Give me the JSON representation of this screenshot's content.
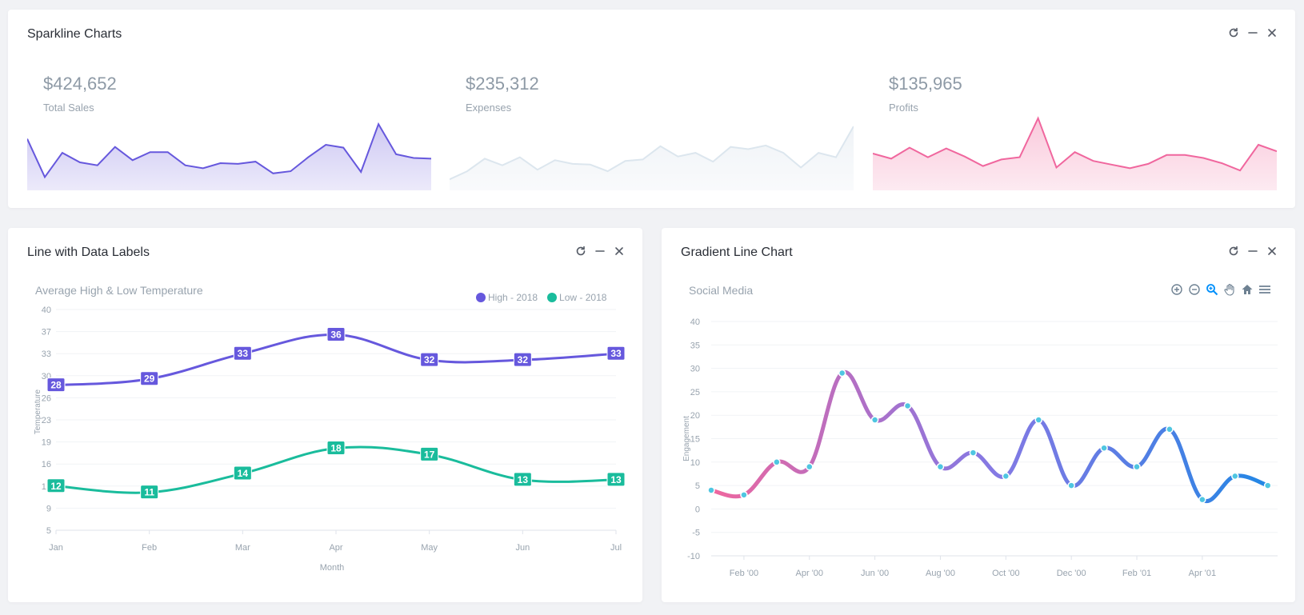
{
  "sparkline_card": {
    "title": "Sparkline Charts",
    "actions": [
      "refresh",
      "minimize",
      "close"
    ],
    "items": [
      {
        "amount": "$424,652",
        "label": "Total Sales",
        "color": "#6658dd",
        "fill": "#c9c3f2",
        "stroke_opacity": 1
      },
      {
        "amount": "$235,312",
        "label": "Expenses",
        "color": "#dce6ee",
        "fill": "#eef2f6",
        "stroke_opacity": 1
      },
      {
        "amount": "$135,965",
        "label": "Profits",
        "color": "#f0679e",
        "fill": "#f9c4d8",
        "stroke_opacity": 1
      }
    ]
  },
  "line_card": {
    "title": "Line with Data Labels",
    "subtitle": "Average High & Low Temperature"
  },
  "gradient_card": {
    "title": "Gradient Line Chart",
    "subtitle": "Social Media",
    "toolbar": [
      "zoom-in",
      "zoom-out",
      "selection-zoom",
      "pan",
      "reset-home",
      "menu"
    ]
  },
  "chart_data": [
    {
      "type": "area",
      "title": "Total Sales",
      "values": [
        70,
        18,
        51,
        38,
        34,
        59,
        41,
        52,
        52,
        34,
        30,
        37,
        36,
        39,
        23,
        26,
        45,
        62,
        58,
        25,
        90,
        49,
        44,
        43
      ]
    },
    {
      "type": "area",
      "title": "Expenses",
      "values": [
        15,
        26,
        43,
        34,
        45,
        28,
        41,
        36,
        35,
        26,
        40,
        42,
        60,
        46,
        51,
        39,
        59,
        56,
        61,
        51,
        31,
        51,
        45,
        87
      ]
    },
    {
      "type": "area",
      "title": "Profits",
      "values": [
        50,
        43,
        58,
        45,
        57,
        46,
        33,
        42,
        45,
        98,
        31,
        52,
        40,
        35,
        30,
        36,
        48,
        48,
        44,
        37,
        27,
        62,
        53
      ]
    },
    {
      "type": "line",
      "title": "Average High & Low Temperature",
      "xlabel": "Month",
      "ylabel": "Temperature",
      "categories": [
        "Jan",
        "Feb",
        "Mar",
        "Apr",
        "May",
        "Jun",
        "Jul"
      ],
      "ylim": [
        5,
        40
      ],
      "yticks": [
        "40",
        "37",
        "33",
        "30",
        "26",
        "23",
        "19",
        "16",
        "12",
        "9",
        "5"
      ],
      "legend_position": "top-right",
      "grid": true,
      "series": [
        {
          "name": "High - 2018",
          "color": "#6658dd",
          "values": [
            28,
            29,
            33,
            36,
            32,
            32,
            33
          ]
        },
        {
          "name": "Low - 2018",
          "color": "#1abc9c",
          "values": [
            12,
            11,
            14,
            18,
            17,
            13,
            13
          ]
        }
      ]
    },
    {
      "type": "line",
      "title": "Social Media",
      "ylabel": "Engagement",
      "ylim": [
        -10,
        40
      ],
      "yticks": [
        "40",
        "35",
        "30",
        "25",
        "20",
        "15",
        "10",
        "5",
        "0",
        "-5",
        "-10"
      ],
      "xticks": [
        "Feb '00",
        "Apr '00",
        "Jun '00",
        "Aug '00",
        "Oct '00",
        "Dec '00",
        "Feb '01",
        "Apr '01"
      ],
      "grid": true,
      "gradient": [
        "#f0679e",
        "#6658dd",
        "#1e88e5"
      ],
      "marker_color": "#4fc6e1",
      "x_months": [
        0.35,
        1.35,
        2.35,
        3.35,
        4.35,
        5.35,
        6.35,
        7.35,
        8.35,
        9.35,
        10.35,
        11.35,
        12.35,
        13.35,
        14.35,
        15.35,
        16.35,
        17.35
      ],
      "values": [
        4,
        3,
        10,
        9,
        29,
        19,
        22,
        9,
        12,
        7,
        19,
        5,
        13,
        9,
        17,
        2,
        7,
        5
      ]
    }
  ]
}
